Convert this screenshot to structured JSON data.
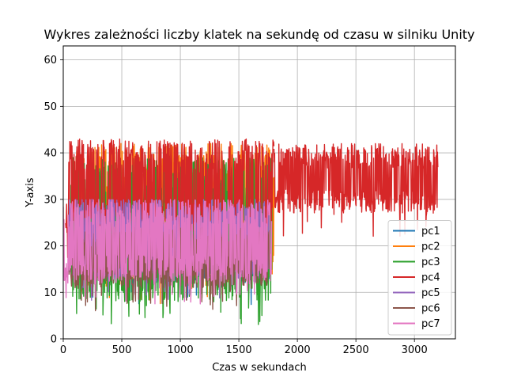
{
  "chart_data": {
    "type": "line",
    "title": "Wykres zależności liczby klatek na sekundę od czasu w silniku Unity",
    "xlabel": "Czas w sekundach",
    "ylabel": "Y-axis",
    "xlim": [
      0,
      3350
    ],
    "ylim": [
      0,
      63
    ],
    "xticks": [
      0,
      500,
      1000,
      1500,
      2000,
      2500,
      3000
    ],
    "yticks": [
      0,
      10,
      20,
      30,
      40,
      50,
      60
    ],
    "grid": true,
    "legend_position": "lower-right",
    "series": [
      {
        "name": "pc1",
        "color": "#1f77b4",
        "x_max": 1770,
        "bands": [
          {
            "x0": 100,
            "x1": 1770,
            "low": 12,
            "high": 30
          }
        ]
      },
      {
        "name": "pc2",
        "color": "#ff7f0e",
        "x_max": 1800,
        "bands": [
          {
            "x0": 100,
            "x1": 1800,
            "low": 12,
            "high": 42
          }
        ]
      },
      {
        "name": "pc3",
        "color": "#2ca02c",
        "x_max": 1790,
        "bands": [
          {
            "x0": 60,
            "x1": 1790,
            "low": 8,
            "high": 39
          }
        ]
      },
      {
        "name": "pc4",
        "color": "#d62728",
        "x_max": 3200,
        "bands": [
          {
            "x0": 20,
            "x1": 1800,
            "low": 22,
            "high": 43
          },
          {
            "x0": 1800,
            "x1": 3200,
            "low": 27,
            "high": 42
          }
        ]
      },
      {
        "name": "pc5",
        "color": "#9467bd",
        "x_max": 1760,
        "bands": [
          {
            "x0": 50,
            "x1": 1760,
            "low": 13,
            "high": 30
          }
        ]
      },
      {
        "name": "pc6",
        "color": "#8c564b",
        "x_max": 1760,
        "bands": [
          {
            "x0": 50,
            "x1": 1760,
            "low": 11,
            "high": 24
          }
        ]
      },
      {
        "name": "pc7",
        "color": "#e377c2",
        "x_max": 1780,
        "bands": [
          {
            "x0": 0,
            "x1": 1780,
            "low": 12,
            "high": 30
          }
        ]
      }
    ]
  }
}
